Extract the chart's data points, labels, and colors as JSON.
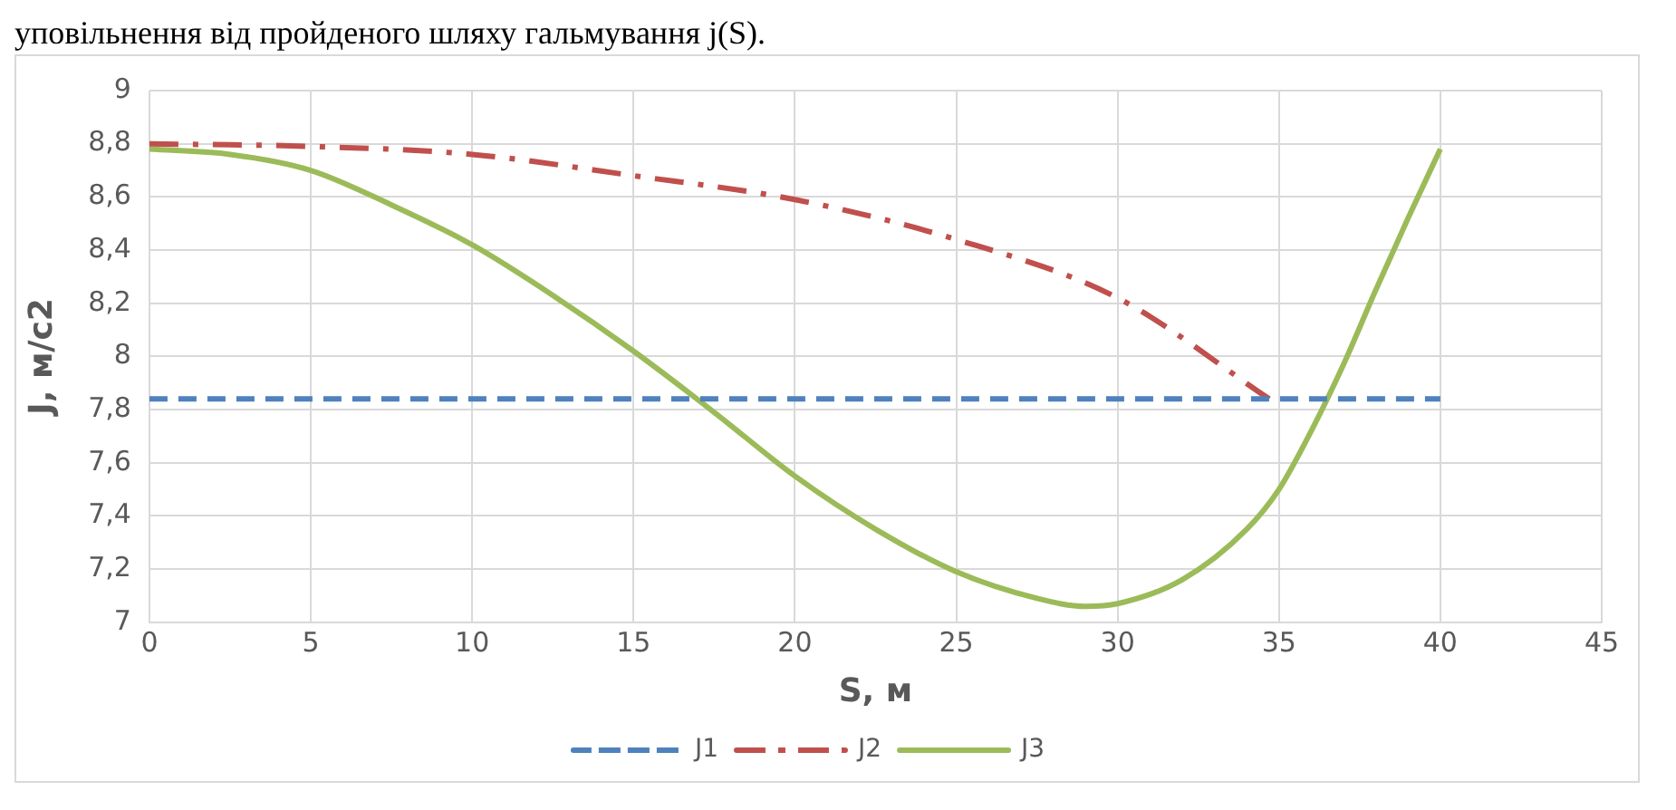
{
  "chart_data": {
    "type": "line",
    "annotations": [
      "уповільнення від пройденого шляху гальмування j(S)."
    ],
    "xlabel": "S, м",
    "ylabel": "J, м/с2",
    "xlim": [
      0,
      45
    ],
    "xticks": [
      0,
      5,
      10,
      15,
      20,
      25,
      30,
      35,
      40,
      45
    ],
    "ylim": [
      7,
      9
    ],
    "yticks": [
      {
        "value": 7,
        "label": "7"
      },
      {
        "value": 7.2,
        "label": "7,2"
      },
      {
        "value": 7.4,
        "label": "7,4"
      },
      {
        "value": 7.6,
        "label": "7,6"
      },
      {
        "value": 7.8,
        "label": "7,8"
      },
      {
        "value": 8,
        "label": "8"
      },
      {
        "value": 8.2,
        "label": "8,2"
      },
      {
        "value": 8.4,
        "label": "8,4"
      },
      {
        "value": 8.6,
        "label": "8,6"
      },
      {
        "value": 8.8,
        "label": "8,8"
      },
      {
        "value": 9,
        "label": "9"
      }
    ],
    "grid": true,
    "legend": "bottom",
    "marker": "none",
    "series": [
      {
        "name": "J1",
        "color": "#4f81bd",
        "line_style": "dashed",
        "x": [
          0,
          40
        ],
        "values": [
          7.84,
          7.84
        ]
      },
      {
        "name": "J2",
        "color": "#c0504d",
        "line_style": "dashed",
        "x": [
          0,
          5,
          10,
          15,
          20,
          25,
          30,
          34.7
        ],
        "values": [
          8.8,
          8.79,
          8.76,
          8.68,
          8.59,
          8.44,
          8.22,
          7.84
        ]
      },
      {
        "name": "J3",
        "color": "#9bbb59",
        "line_style": "solid",
        "x": [
          0,
          2.5,
          5,
          7.5,
          10,
          12.5,
          15,
          17.5,
          20,
          22.5,
          25,
          27.5,
          29,
          30,
          32,
          34,
          35,
          36,
          37,
          38,
          39,
          40
        ],
        "values": [
          8.78,
          8.76,
          8.7,
          8.57,
          8.42,
          8.23,
          8.02,
          7.79,
          7.55,
          7.35,
          7.19,
          7.09,
          7.06,
          7.07,
          7.16,
          7.35,
          7.5,
          7.72,
          7.97,
          8.25,
          8.52,
          8.78
        ]
      }
    ]
  }
}
